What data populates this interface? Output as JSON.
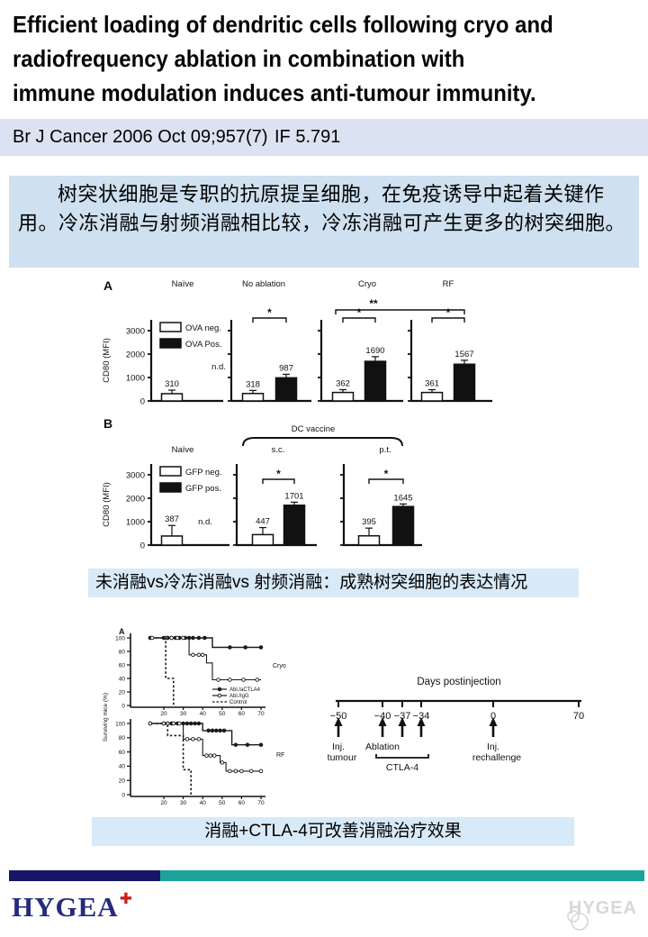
{
  "slide": {
    "title_lines": [
      "Efficient loading of dendritic cells following cryo and",
      "radiofrequency ablation in combination with",
      "immune modulation induces anti-tumour immunity."
    ],
    "citation": "Br J Cancer 2006 Oct 09;957(7)",
    "impact_factor": "IF 5.791",
    "summary": "树突状细胞是专职的抗原提呈细胞，在免疫诱导中起着关键作用。冷冻消融与射频消融相比较，冷冻消融可产生更多的树突细胞。",
    "caption_fig1": "未消融vs冷冻消融vs 射频消融：成熟树突细胞的表达情况",
    "caption_fig2": "消融+CTLA-4可改善消融治疗效果"
  },
  "footer": {
    "logo_text": "HYGEA",
    "logo_plus": "✚",
    "watermark_text": "HYGEA",
    "bar_navy": "#171568",
    "bar_teal": "#1ba39b"
  },
  "chart_data": [
    {
      "id": "fig1_panelA",
      "type": "bar",
      "panel_label": "A",
      "ylabel": "CD80 (MFI)",
      "yticks": [
        0,
        1000,
        2000,
        3000
      ],
      "ylim": [
        0,
        3500
      ],
      "legend": [
        "OVA neg.",
        "OVA Pos."
      ],
      "groups": [
        {
          "label": "Naïve",
          "neg": 310,
          "neg_err": 150,
          "pos": null,
          "note": "n.d."
        },
        {
          "label": "No ablation",
          "neg": 318,
          "neg_err": 130,
          "pos": 987,
          "pos_err": 150,
          "sig": "*"
        },
        {
          "label": "Cryo",
          "neg": 362,
          "neg_err": 120,
          "pos": 1690,
          "pos_err": 200,
          "sig": "*"
        },
        {
          "label": "RF",
          "neg": 361,
          "neg_err": 120,
          "pos": 1567,
          "pos_err": 170,
          "sig": "*"
        }
      ],
      "cross_sig": {
        "label": "**",
        "from": "No ablation",
        "to": "RF"
      }
    },
    {
      "id": "fig1_panelB",
      "type": "bar",
      "panel_label": "B",
      "ylabel": "CD80 (MFI)",
      "yticks": [
        0,
        1000,
        2000,
        3000
      ],
      "ylim": [
        0,
        3500
      ],
      "legend": [
        "GFP neg.",
        "GFP pos."
      ],
      "group_bracket": "DC vaccine",
      "groups": [
        {
          "label": "Naïve",
          "neg": 387,
          "neg_err": 450,
          "pos": null,
          "note": "n.d."
        },
        {
          "label": "s.c.",
          "neg": 447,
          "neg_err": 300,
          "pos": 1701,
          "pos_err": 130,
          "sig": "*"
        },
        {
          "label": "p.t.",
          "neg": 395,
          "neg_err": 330,
          "pos": 1645,
          "pos_err": 110,
          "sig": "*"
        }
      ]
    },
    {
      "id": "fig2_survival",
      "type": "line",
      "panel_label": "A",
      "ylabel": "Surviving mice (%)",
      "yticks": [
        0,
        20,
        40,
        60,
        80,
        100
      ],
      "xticks": [
        20,
        30,
        40,
        50,
        60,
        70
      ],
      "legend": [
        "Abl./aCTLA4",
        "Abl./IgG",
        "Control"
      ],
      "plots": [
        {
          "label": "Cryo",
          "series": [
            {
              "name": "Abl./aCTLA4",
              "style": "solid_filled",
              "steps": [
                [
                  13,
                  100
                ],
                [
                  45,
                  100
                ],
                [
                  45,
                  86
                ],
                [
                  70,
                  86
                ]
              ],
              "markers": [
                [
                  13,
                  100
                ],
                [
                  20,
                  100
                ],
                [
                  22,
                  100
                ],
                [
                  24,
                  100
                ],
                [
                  26,
                  100
                ],
                [
                  28,
                  100
                ],
                [
                  31,
                  100
                ],
                [
                  33,
                  100
                ],
                [
                  35,
                  100
                ],
                [
                  38,
                  100
                ],
                [
                  41,
                  100
                ],
                [
                  54,
                  86
                ],
                [
                  62,
                  86
                ],
                [
                  70,
                  86
                ]
              ]
            },
            {
              "name": "Abl./IgG",
              "style": "solid_open",
              "steps": [
                [
                  13,
                  100
                ],
                [
                  33,
                  100
                ],
                [
                  33,
                  75
                ],
                [
                  42,
                  75
                ],
                [
                  42,
                  63
                ],
                [
                  45,
                  63
                ],
                [
                  45,
                  38
                ],
                [
                  70,
                  38
                ]
              ],
              "markers": [
                [
                  14,
                  100
                ],
                [
                  21,
                  100
                ],
                [
                  24,
                  100
                ],
                [
                  27,
                  100
                ],
                [
                  30,
                  100
                ],
                [
                  35,
                  75
                ],
                [
                  38,
                  75
                ],
                [
                  40,
                  75
                ],
                [
                  48,
                  38
                ],
                [
                  54,
                  38
                ],
                [
                  61,
                  38
                ],
                [
                  68,
                  38
                ]
              ]
            },
            {
              "name": "Control",
              "style": "dashed",
              "steps": [
                [
                  16,
                  100
                ],
                [
                  21,
                  100
                ],
                [
                  21,
                  40
                ],
                [
                  25,
                  40
                ],
                [
                  25,
                  0
                ]
              ],
              "markers": []
            }
          ]
        },
        {
          "label": "RF",
          "series": [
            {
              "name": "Abl./aCTLA4",
              "style": "solid_filled",
              "steps": [
                [
                  13,
                  100
                ],
                [
                  40,
                  100
                ],
                [
                  40,
                  90
                ],
                [
                  55,
                  90
                ],
                [
                  55,
                  70
                ],
                [
                  70,
                  70
                ]
              ],
              "markers": [
                [
                  13,
                  100
                ],
                [
                  20,
                  100
                ],
                [
                  22,
                  100
                ],
                [
                  24,
                  100
                ],
                [
                  27,
                  100
                ],
                [
                  30,
                  100
                ],
                [
                  32,
                  100
                ],
                [
                  34,
                  100
                ],
                [
                  36,
                  100
                ],
                [
                  38,
                  100
                ],
                [
                  43,
                  90
                ],
                [
                  45,
                  90
                ],
                [
                  47,
                  90
                ],
                [
                  49,
                  90
                ],
                [
                  51,
                  90
                ],
                [
                  57,
                  70
                ],
                [
                  63,
                  70
                ],
                [
                  70,
                  70
                ]
              ]
            },
            {
              "name": "Abl./IgG",
              "style": "solid_open",
              "steps": [
                [
                  13,
                  100
                ],
                [
                  30,
                  100
                ],
                [
                  30,
                  78
                ],
                [
                  40,
                  78
                ],
                [
                  40,
                  55
                ],
                [
                  49,
                  55
                ],
                [
                  49,
                  45
                ],
                [
                  52,
                  45
                ],
                [
                  52,
                  33
                ],
                [
                  70,
                  33
                ]
              ],
              "markers": [
                [
                  13,
                  100
                ],
                [
                  20,
                  100
                ],
                [
                  22,
                  100
                ],
                [
                  25,
                  100
                ],
                [
                  28,
                  100
                ],
                [
                  32,
                  78
                ],
                [
                  35,
                  78
                ],
                [
                  38,
                  78
                ],
                [
                  42,
                  55
                ],
                [
                  44,
                  55
                ],
                [
                  46,
                  55
                ],
                [
                  50,
                  45
                ],
                [
                  54,
                  33
                ],
                [
                  57,
                  33
                ],
                [
                  60,
                  33
                ],
                [
                  65,
                  33
                ],
                [
                  70,
                  33
                ]
              ]
            },
            {
              "name": "Control",
              "style": "dashed",
              "steps": [
                [
                  16,
                  100
                ],
                [
                  22,
                  100
                ],
                [
                  22,
                  83
                ],
                [
                  30,
                  83
                ],
                [
                  30,
                  35
                ],
                [
                  34,
                  35
                ],
                [
                  34,
                  0
                ]
              ],
              "markers": []
            }
          ]
        }
      ]
    },
    {
      "id": "fig2_timeline",
      "type": "timeline",
      "title": "Days postinjection",
      "tick_labels": [
        "−50",
        "−40",
        "−37",
        "−34",
        "0",
        "70"
      ],
      "events": [
        {
          "tick_index": 0,
          "lines": [
            "Inj.",
            "tumour"
          ]
        },
        {
          "tick_index": 1,
          "lines": [
            "Ablation"
          ]
        },
        {
          "tick_index": 4,
          "lines": [
            "Inj.",
            "rechallenge"
          ]
        }
      ],
      "bracket_label": "CTLA-4"
    }
  ]
}
